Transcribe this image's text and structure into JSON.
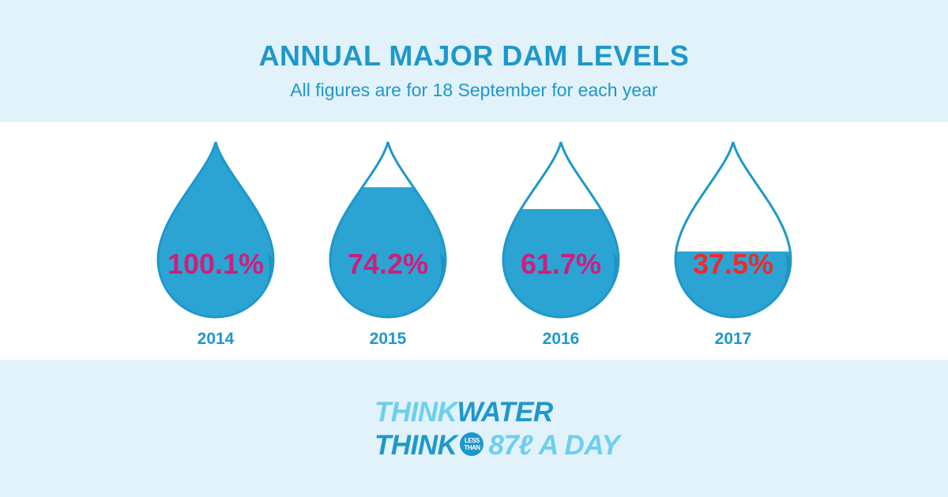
{
  "header": {
    "title": "ANNUAL MAJOR DAM LEVELS",
    "subtitle": "All figures are for 18 September for each year"
  },
  "chart_data": {
    "type": "bar",
    "title": "ANNUAL MAJOR DAM LEVELS",
    "subtitle": "All figures are for 18 September for each year",
    "categories": [
      "2014",
      "2015",
      "2016",
      "2017"
    ],
    "values": [
      100.1,
      74.2,
      61.7,
      37.5
    ],
    "value_labels": [
      "100.1%",
      "74.2%",
      "61.7%",
      "37.5%"
    ],
    "ylim": [
      0,
      100
    ],
    "colors": {
      "water": "#2ba4d3",
      "water_shade": "#1a8fc0",
      "outline": "#1e98cb",
      "label_normal": "#d01d7c",
      "label_alert": "#ee2a2a"
    },
    "label_colors": [
      "#d01d7c",
      "#d01d7c",
      "#d01d7c",
      "#ee2a2a"
    ]
  },
  "logo": {
    "line1_part1": "THINK",
    "line1_part2": "WATER",
    "line2_part1": "THINK",
    "badge_top": "LESS",
    "badge_bottom": "THAN",
    "line2_part2": "87ℓ A DAY"
  }
}
